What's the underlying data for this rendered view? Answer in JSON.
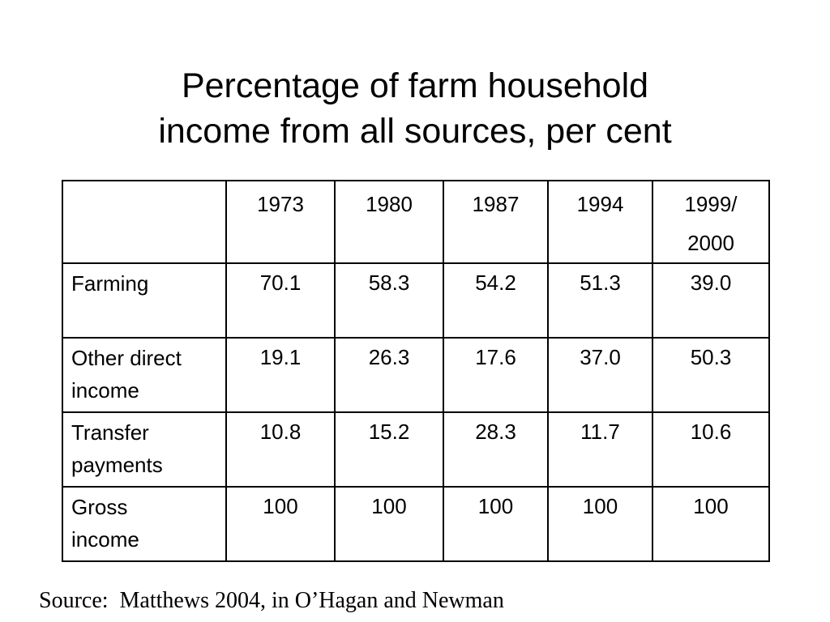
{
  "title": {
    "line1": "Percentage of farm household",
    "line2": "income from all sources, per cent"
  },
  "table": {
    "header": [
      "",
      "1973",
      "1980",
      "1987",
      "1994",
      [
        "1999/",
        "2000"
      ]
    ],
    "rows": [
      {
        "label": [
          "Farming"
        ],
        "values": [
          "70.1",
          "58.3",
          "54.2",
          "51.3",
          "39.0"
        ]
      },
      {
        "label": [
          "Other direct",
          "income"
        ],
        "values": [
          "19.1",
          "26.3",
          "17.6",
          "37.0",
          "50.3"
        ]
      },
      {
        "label": [
          "Transfer",
          "payments"
        ],
        "values": [
          "10.8",
          "15.2",
          "28.3",
          "11.7",
          "10.6"
        ]
      },
      {
        "label": [
          "Gross",
          "income"
        ],
        "values": [
          "100",
          "100",
          "100",
          "100",
          "100"
        ]
      }
    ]
  },
  "source": "Source:  Matthews 2004, in O’Hagan and Newman"
}
